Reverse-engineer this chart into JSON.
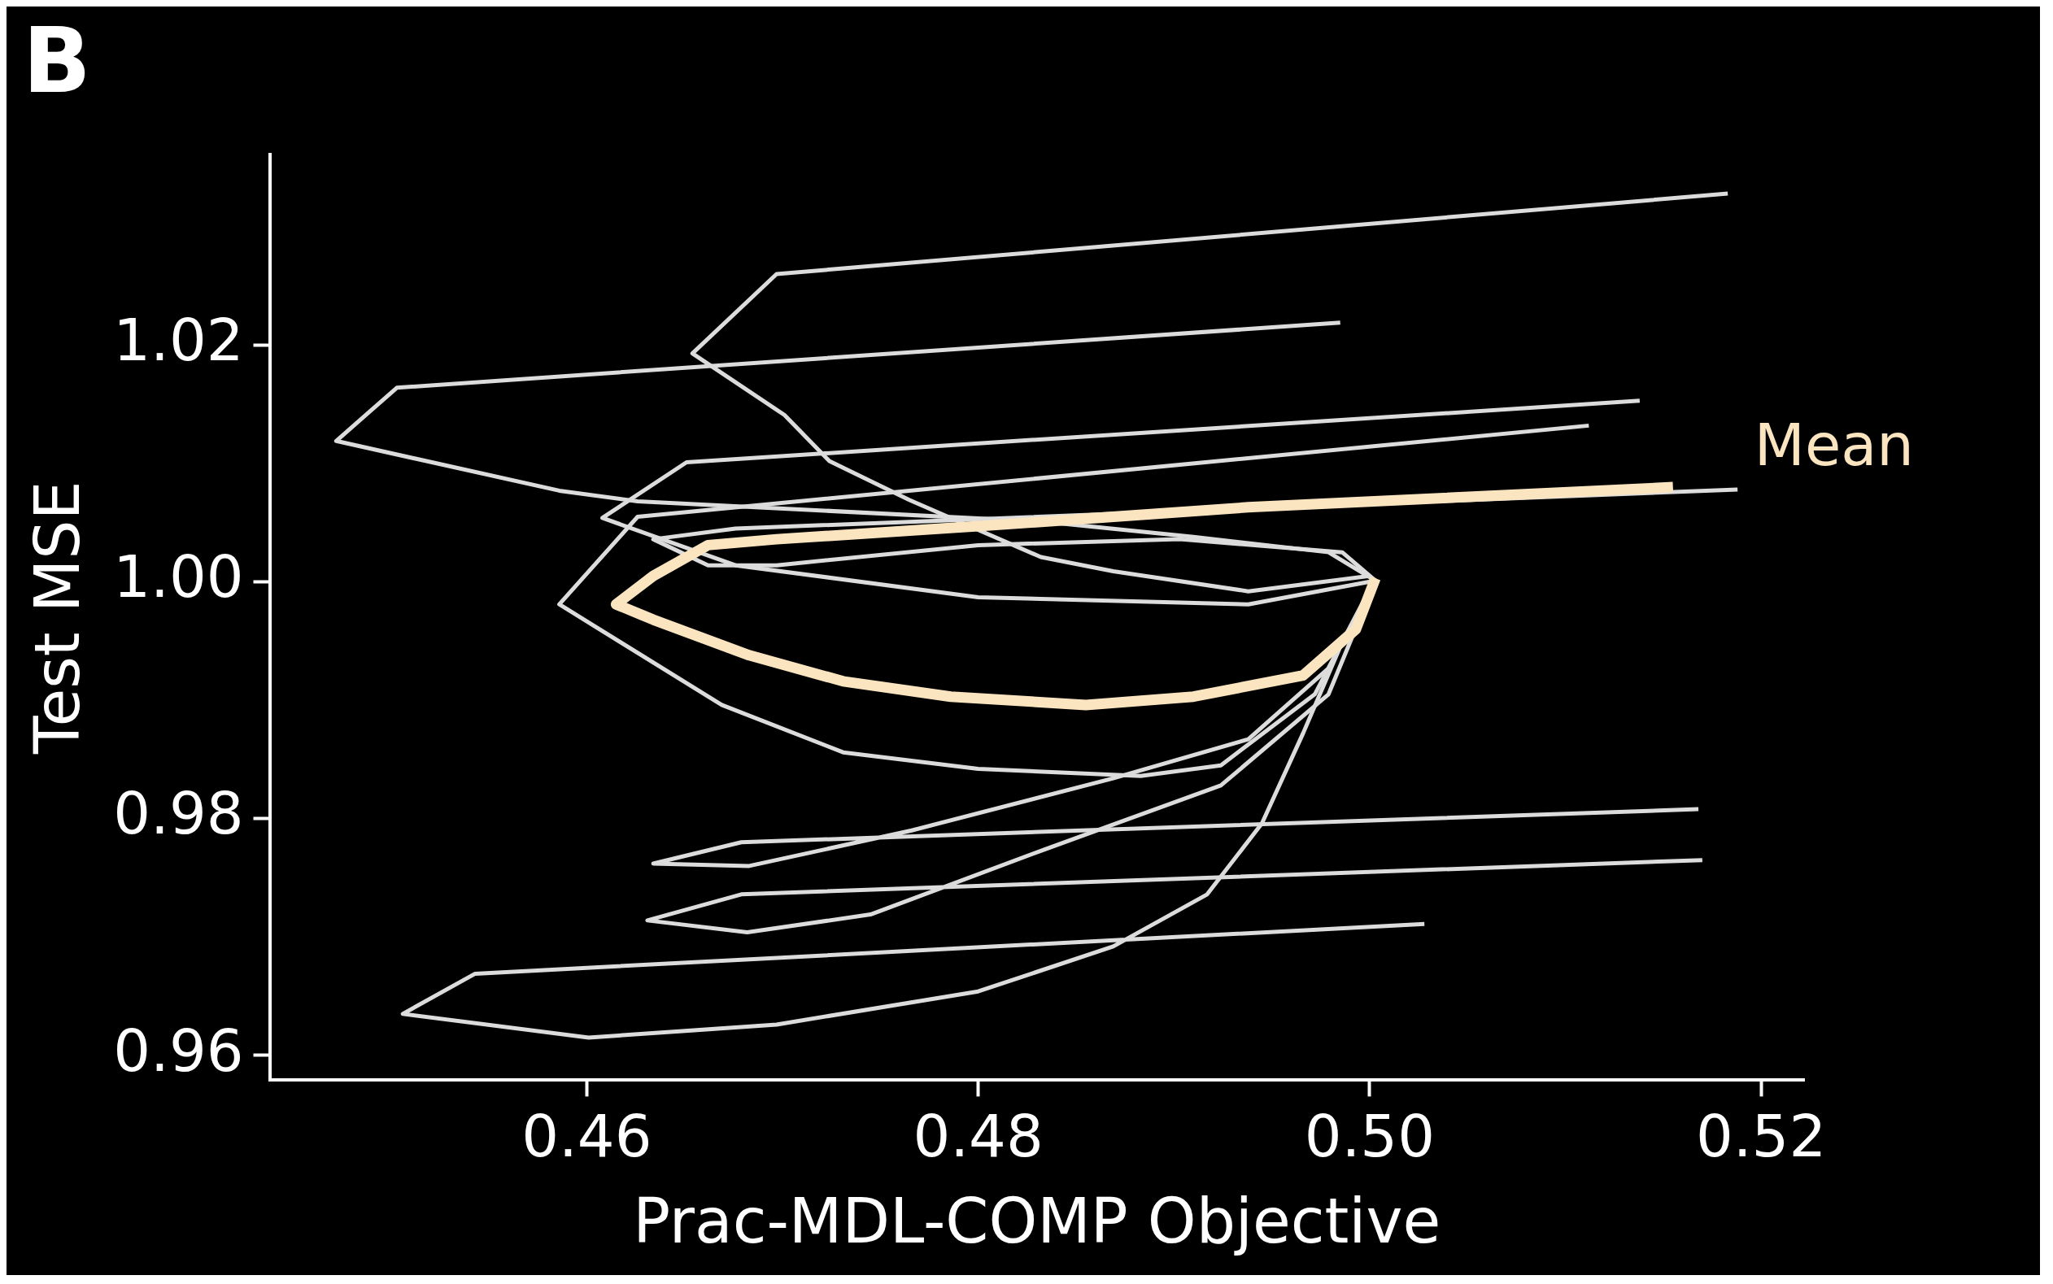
{
  "chart_data": {
    "type": "line",
    "title": "B",
    "xlabel": "Prac-MDL-COMP Objective",
    "ylabel": "Test MSE",
    "xlim": [
      0.4438,
      0.5222
    ],
    "ylim": [
      0.9579,
      1.0361
    ],
    "xticks": [
      0.46,
      0.48,
      {
        "value": 0.5,
        "label": "0.50"
      },
      0.52
    ],
    "yticks": [
      0.96,
      0.98,
      {
        "value": 1,
        "label": "1.00"
      },
      1.02
    ],
    "grid": false,
    "legend": false,
    "marker": "none",
    "line_style": "solid",
    "series": [
      {
        "color": "#dcdcdc",
        "x": [
          0.5,
          0.4938,
          0.4869,
          0.4832,
          0.4765,
          0.4724,
          0.4701,
          0.4654,
          0.4697,
          0.5183
        ],
        "values": [
          1.0005,
          0.9992,
          1.0009,
          1.0021,
          1.0069,
          1.0102,
          1.0141,
          1.0193,
          1.026,
          1.0328
        ]
      },
      {
        "color": "#dcdcdc",
        "x": [
          0.5003,
          0.4979,
          0.491,
          0.4832,
          0.4626,
          0.4586,
          0.4472,
          0.4503,
          0.4985
        ],
        "values": [
          1.0001,
          1.0025,
          1.0038,
          1.0051,
          1.0068,
          1.0077,
          1.0119,
          1.0164,
          1.0219
        ]
      },
      {
        "color": "#dcdcdc",
        "x": [
          0.5003,
          0.4938,
          0.48,
          0.4676,
          0.4608,
          0.4651,
          0.5138
        ],
        "values": [
          1.0001,
          0.9981,
          0.9987,
          1.0014,
          1.0054,
          1.0101,
          1.0153
        ]
      },
      {
        "color": "#dcdcdc",
        "x": [
          0.5003,
          0.4972,
          0.4924,
          0.4883,
          0.48,
          0.4731,
          0.4669,
          0.4586,
          0.4626,
          0.5112
        ],
        "values": [
          1.0003,
          0.9905,
          0.9845,
          0.9836,
          0.9842,
          0.9856,
          0.9896,
          0.9981,
          1.0055,
          1.0132
        ]
      },
      {
        "color": "#dcdcdc",
        "x": [
          0.5003,
          0.4986,
          0.4903,
          0.48,
          0.4697,
          0.4662,
          0.4634,
          0.4676,
          0.5188
        ],
        "values": [
          1.0001,
          1.0025,
          1.0036,
          1.0031,
          1.0014,
          1.0014,
          1.0036,
          1.0045,
          1.0078
        ]
      },
      {
        "color": "#dcdcdc",
        "x": [
          0.5003,
          0.4979,
          0.4938,
          0.4869,
          0.4766,
          0.4683,
          0.4634,
          0.4679,
          0.5168
        ],
        "values": [
          1.0001,
          0.9927,
          0.9867,
          0.9834,
          0.979,
          0.976,
          0.9762,
          0.978,
          0.9808
        ]
      },
      {
        "color": "#dcdcdc",
        "x": [
          0.5003,
          0.4979,
          0.4924,
          0.4834,
          0.4745,
          0.4682,
          0.4631,
          0.4679,
          0.517
        ],
        "values": [
          1.0001,
          0.9905,
          0.9828,
          0.9774,
          0.9719,
          0.9704,
          0.9714,
          0.9736,
          0.9765
        ]
      },
      {
        "color": "#dcdcdc",
        "x": [
          0.5003,
          0.4986,
          0.4966,
          0.4945,
          0.4917,
          0.4869,
          0.48,
          0.4697,
          0.4601,
          0.4506,
          0.4543,
          0.5028
        ],
        "values": [
          1.0001,
          0.9949,
          0.9872,
          0.9796,
          0.9736,
          0.9692,
          0.9654,
          0.9626,
          0.9615,
          0.9635,
          0.9669,
          0.9711
        ]
      },
      {
        "name": "Mean",
        "color": "#fbe5c0",
        "x": [
          0.5003,
          0.4993,
          0.4966,
          0.491,
          0.4855,
          0.4786,
          0.4731,
          0.4683,
          0.4634,
          0.4615,
          0.4634,
          0.4662,
          0.4697,
          0.48,
          0.4938,
          0.5155
        ],
        "values": [
          1.0003,
          0.996,
          0.9921,
          0.9903,
          0.9896,
          0.9903,
          0.9916,
          0.9938,
          0.9968,
          0.9981,
          1.0005,
          1.0031,
          1.0036,
          1.0047,
          1.0063,
          1.008
        ]
      }
    ]
  }
}
